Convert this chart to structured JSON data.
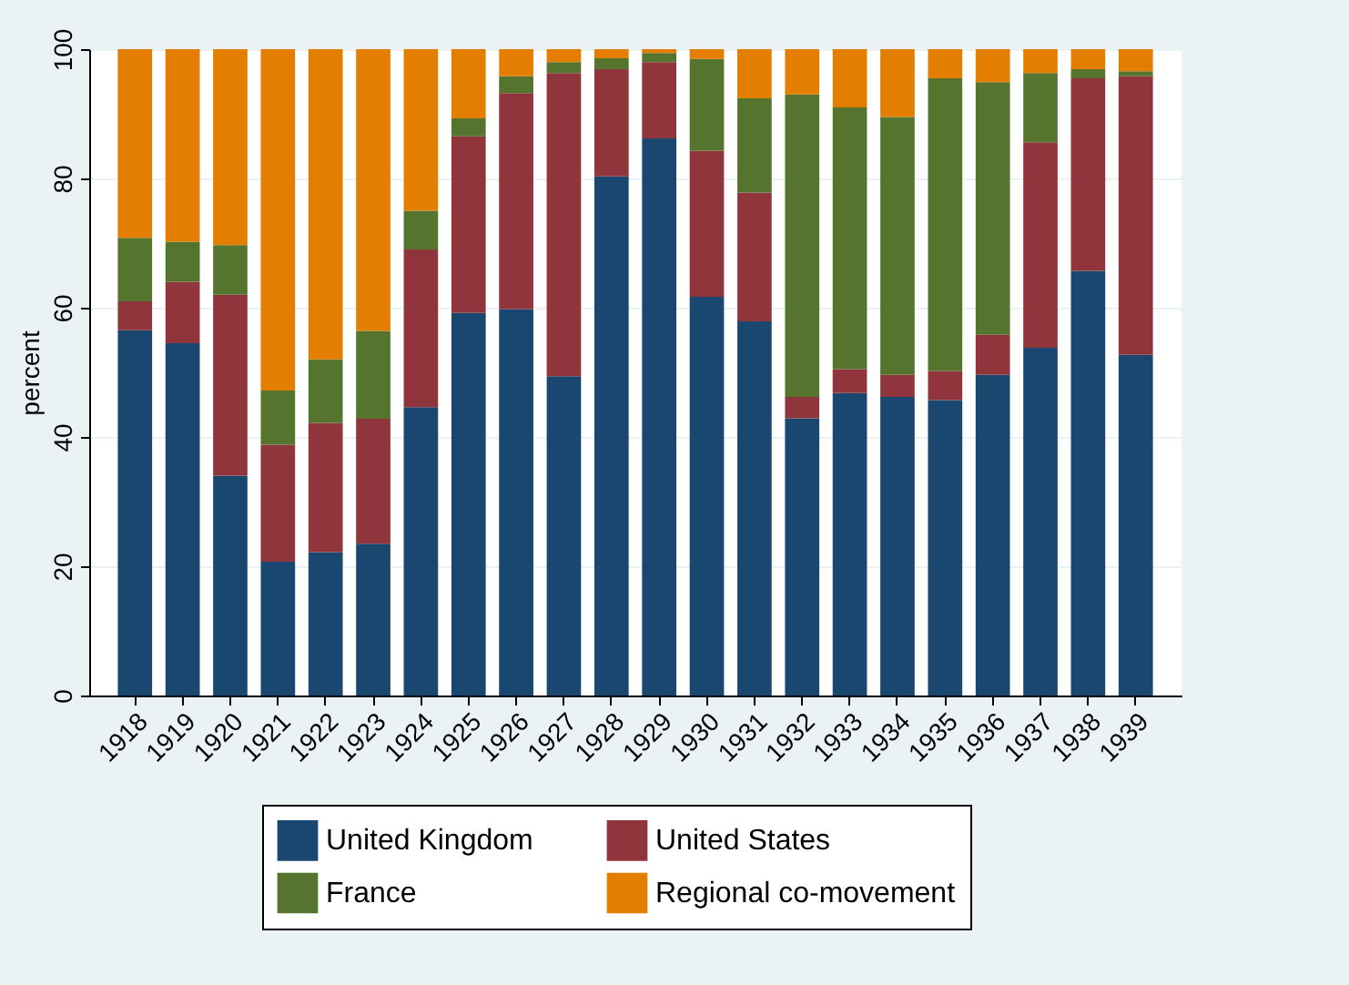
{
  "chart_data": {
    "type": "bar",
    "stacked": true,
    "ylabel": "percent",
    "categories": [
      "1918",
      "1919",
      "1920",
      "1921",
      "1922",
      "1923",
      "1924",
      "1925",
      "1926",
      "1927",
      "1928",
      "1929",
      "1930",
      "1931",
      "1932",
      "1933",
      "1934",
      "1935",
      "1936",
      "1937",
      "1938",
      "1939"
    ],
    "series": [
      {
        "name": "United Kingdom",
        "color": "#1a476f",
        "values": [
          56.5,
          54.5,
          34,
          20.7,
          22.2,
          23.5,
          44.6,
          59.2,
          59.8,
          49.4,
          80.3,
          86.2,
          61.7,
          57.9,
          42.9,
          46.8,
          46.2,
          45.7,
          49.6,
          53.8,
          65.7,
          52.7
        ]
      },
      {
        "name": "United States",
        "color": "#90353b",
        "values": [
          4.5,
          9.5,
          28,
          18.1,
          20,
          19.3,
          24.4,
          27.3,
          33.4,
          46.9,
          16.6,
          11.8,
          22.6,
          19.9,
          3.3,
          3.7,
          3.4,
          4.5,
          6.2,
          31.8,
          29.8,
          43.1
        ]
      },
      {
        "name": "France",
        "color": "#55752f",
        "values": [
          9.8,
          6.2,
          7.7,
          8.4,
          9.8,
          13.6,
          6,
          2.8,
          2.6,
          1.7,
          1.7,
          1.4,
          14.2,
          14.6,
          46.8,
          40.5,
          39.9,
          45.3,
          39.1,
          10.7,
          1.4,
          0.8
        ]
      },
      {
        "name": "Regional co-movement",
        "color": "#e37e00",
        "values": [
          29.2,
          29.8,
          30.3,
          52.8,
          48,
          43.6,
          25,
          10.7,
          4.2,
          2,
          1.4,
          0.6,
          1.5,
          7.6,
          7,
          9,
          10.5,
          4.5,
          5.1,
          3.7,
          3.1,
          3.4
        ]
      }
    ],
    "ylim": [
      0,
      100
    ],
    "yticks": [
      0,
      20,
      40,
      60,
      80,
      100
    ],
    "grid": "y",
    "legend": "bottom"
  }
}
